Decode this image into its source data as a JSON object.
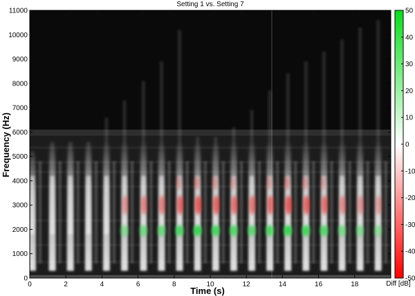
{
  "chart_data": {
    "type": "heatmap",
    "title": "Setting 1 vs. Setting 7",
    "xlabel": "Time (s)",
    "ylabel": "Frequency (Hz)",
    "xlim": [
      0,
      20
    ],
    "ylim": [
      0,
      11000
    ],
    "x_ticks": [
      0,
      2,
      4,
      6,
      8,
      10,
      12,
      14,
      16,
      18
    ],
    "y_ticks": [
      0,
      1000,
      2000,
      3000,
      4000,
      5000,
      6000,
      7000,
      8000,
      9000,
      10000,
      11000
    ],
    "grid": false,
    "colorbar": {
      "label": "Diff [dB]",
      "range": [
        -50,
        50
      ],
      "ticks": [
        50,
        40,
        30,
        20,
        10,
        0,
        -10,
        -20,
        -30,
        -40,
        -50
      ],
      "colors": {
        "positive": "#1ed23a",
        "neutral": "#ffffff",
        "negative": "#e81010"
      }
    },
    "background_color": "#0a0a0a",
    "events": [
      {
        "t": 0.15,
        "top_hz": 5200,
        "diff_db": 0
      },
      {
        "t": 1.25,
        "top_hz": 5600,
        "diff_db": 0
      },
      {
        "t": 2.25,
        "top_hz": 5600,
        "diff_db": 0
      },
      {
        "t": 3.25,
        "top_hz": 5600,
        "diff_db": 0
      },
      {
        "t": 4.25,
        "top_hz": 6600,
        "diff_db": 0
      },
      {
        "t": 5.25,
        "top_hz": 7300,
        "diff_db": 5
      },
      {
        "t": 6.3,
        "top_hz": 8100,
        "diff_db": 10
      },
      {
        "t": 7.3,
        "top_hz": 8900,
        "diff_db": 12
      },
      {
        "t": 8.3,
        "top_hz": 10200,
        "diff_db": 20
      },
      {
        "t": 9.3,
        "top_hz": 5800,
        "diff_db": 25
      },
      {
        "t": 10.3,
        "top_hz": 5800,
        "diff_db": 22
      },
      {
        "t": 11.3,
        "top_hz": 6200,
        "diff_db": 18
      },
      {
        "t": 12.3,
        "top_hz": 6900,
        "diff_db": 15
      },
      {
        "t": 13.3,
        "top_hz": 7700,
        "diff_db": 20
      },
      {
        "t": 14.3,
        "top_hz": 8400,
        "diff_db": 25
      },
      {
        "t": 15.3,
        "top_hz": 8900,
        "diff_db": 22
      },
      {
        "t": 16.3,
        "top_hz": 9300,
        "diff_db": 18
      },
      {
        "t": 17.3,
        "top_hz": 9800,
        "diff_db": 8
      },
      {
        "t": 18.3,
        "top_hz": 10300,
        "diff_db": 5
      },
      {
        "t": 19.3,
        "top_hz": 10600,
        "diff_db": 2
      }
    ]
  }
}
